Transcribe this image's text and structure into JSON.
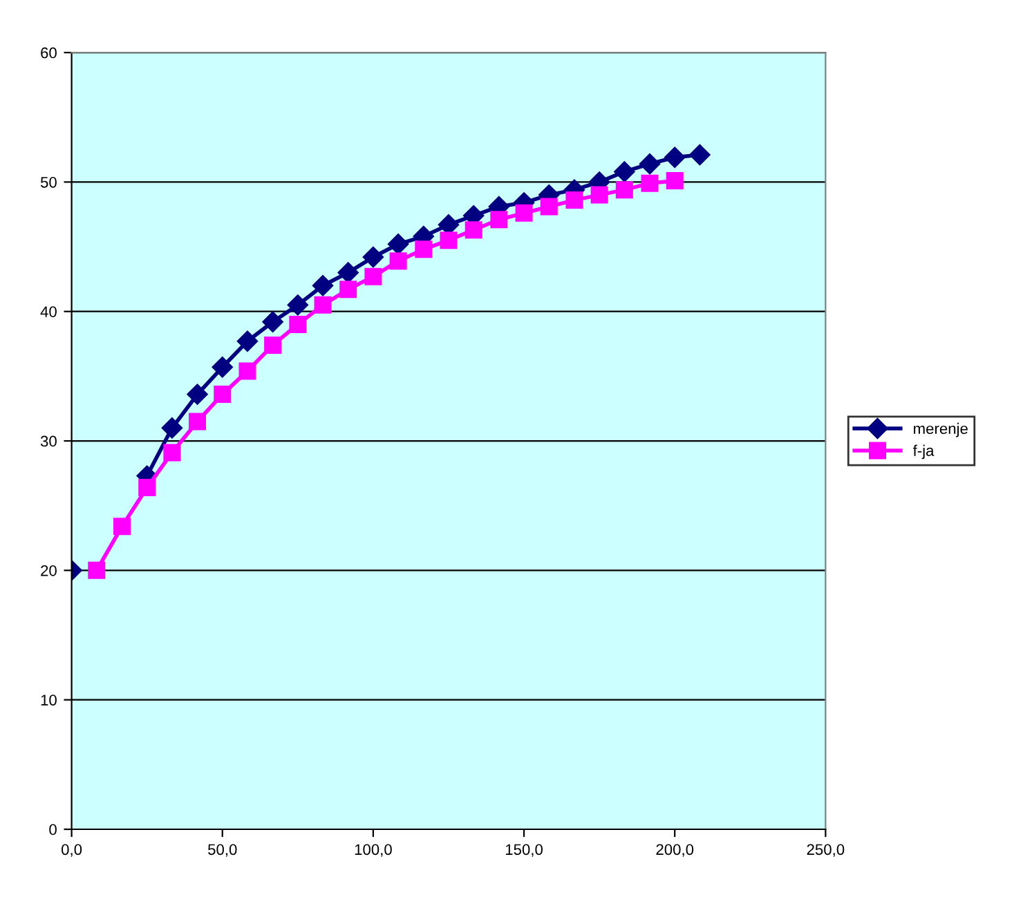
{
  "chart_data": {
    "type": "line",
    "xlim": [
      0,
      250
    ],
    "ylim": [
      0,
      60
    ],
    "xticks": [
      {
        "value": 0,
        "label": "0,0"
      },
      {
        "value": 50,
        "label": "50,0"
      },
      {
        "value": 100,
        "label": "100,0"
      },
      {
        "value": 150,
        "label": "150,0"
      },
      {
        "value": 200,
        "label": "200,0"
      },
      {
        "value": 250,
        "label": "250,0"
      }
    ],
    "yticks": [
      0,
      10,
      20,
      30,
      40,
      50,
      60
    ],
    "grid": "y",
    "legend": "right",
    "series": [
      {
        "name": "merenje",
        "color": "#000080",
        "marker": "diamond",
        "x": [
          0,
          8.3,
          16.7,
          25,
          33.3,
          41.7,
          50,
          58.3,
          66.7,
          75,
          83.3,
          91.7,
          100,
          108.3,
          116.7,
          125,
          133.3,
          141.7,
          150,
          158.3,
          166.7,
          175,
          183.3,
          191.7,
          200,
          208.3
        ],
        "values": [
          20,
          null,
          null,
          27.3,
          31.0,
          33.6,
          35.7,
          37.7,
          39.2,
          40.5,
          42.0,
          43.0,
          44.2,
          45.2,
          45.8,
          46.7,
          47.4,
          48.1,
          48.4,
          49.0,
          49.4,
          50.0,
          50.8,
          51.4,
          51.9,
          52.1
        ]
      },
      {
        "name": "f-ja",
        "color": "#ff00ff",
        "marker": "square",
        "x": [
          8.3,
          16.7,
          25,
          33.3,
          41.7,
          50,
          58.3,
          66.7,
          75,
          83.3,
          91.7,
          100,
          108.3,
          116.7,
          125,
          133.3,
          141.7,
          150,
          158.3,
          166.7,
          175,
          183.3,
          191.7,
          200
        ],
        "values": [
          20.0,
          23.4,
          26.4,
          29.1,
          31.5,
          33.6,
          35.4,
          37.4,
          39.0,
          40.5,
          41.7,
          42.7,
          43.9,
          44.8,
          45.5,
          46.3,
          47.1,
          47.6,
          48.1,
          48.6,
          49.0,
          49.4,
          49.9,
          50.1
        ]
      }
    ]
  }
}
